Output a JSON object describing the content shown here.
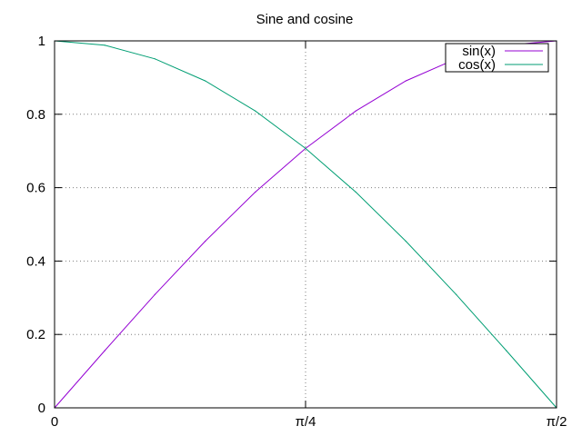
{
  "chart_data": {
    "type": "line",
    "title": "Sine and cosine",
    "xlabel": "",
    "ylabel": "",
    "xlim": [
      0,
      1.5708
    ],
    "ylim": [
      0,
      1
    ],
    "x_ticks": [
      {
        "value": 0,
        "label": "0"
      },
      {
        "value": 0.7854,
        "label": "π/4"
      },
      {
        "value": 1.5708,
        "label": "π/2"
      }
    ],
    "y_ticks": [
      {
        "value": 0,
        "label": "0"
      },
      {
        "value": 0.2,
        "label": "0.2"
      },
      {
        "value": 0.4,
        "label": "0.4"
      },
      {
        "value": 0.6,
        "label": "0.6"
      },
      {
        "value": 0.8,
        "label": "0.8"
      },
      {
        "value": 1,
        "label": "1"
      }
    ],
    "grid": true,
    "legend_position": "top-right",
    "x": [
      0,
      0.1571,
      0.3142,
      0.4712,
      0.6283,
      0.7854,
      0.9425,
      1.0996,
      1.2566,
      1.4137,
      1.5708
    ],
    "series": [
      {
        "name": "sin(x)",
        "color": "#9400d3",
        "values": [
          0,
          0.156,
          0.309,
          0.454,
          0.588,
          0.707,
          0.809,
          0.891,
          0.951,
          0.988,
          1
        ]
      },
      {
        "name": "cos(x)",
        "color": "#009e73",
        "values": [
          1,
          0.988,
          0.951,
          0.891,
          0.809,
          0.707,
          0.588,
          0.454,
          0.309,
          0.156,
          0
        ]
      }
    ]
  }
}
